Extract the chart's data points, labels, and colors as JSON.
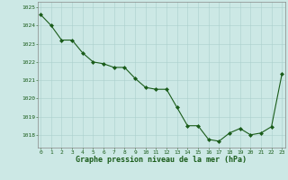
{
  "x": [
    0,
    1,
    2,
    3,
    4,
    5,
    6,
    7,
    8,
    9,
    10,
    11,
    12,
    13,
    14,
    15,
    16,
    17,
    18,
    19,
    20,
    21,
    22,
    23
  ],
  "y": [
    1024.6,
    1024.0,
    1023.2,
    1023.2,
    1022.5,
    1022.0,
    1021.9,
    1021.7,
    1021.7,
    1021.1,
    1020.6,
    1020.5,
    1020.5,
    1019.5,
    1018.5,
    1018.5,
    1017.75,
    1017.65,
    1018.1,
    1018.35,
    1018.0,
    1018.1,
    1018.45,
    1021.35
  ],
  "xlabel": "Graphe pression niveau de la mer (hPa)",
  "ylim": [
    1017.3,
    1025.3
  ],
  "xlim": [
    -0.3,
    23.3
  ],
  "yticks": [
    1018,
    1019,
    1020,
    1021,
    1022,
    1023,
    1024,
    1025
  ],
  "xticks": [
    0,
    1,
    2,
    3,
    4,
    5,
    6,
    7,
    8,
    9,
    10,
    11,
    12,
    13,
    14,
    15,
    16,
    17,
    18,
    19,
    20,
    21,
    22,
    23
  ],
  "line_color": "#1a5c1a",
  "marker_color": "#1a5c1a",
  "bg_color": "#cce8e5",
  "grid_color": "#aacfcc",
  "xlabel_color": "#1a5c1a",
  "tick_color": "#1a5c1a",
  "axis_color": "#888888"
}
